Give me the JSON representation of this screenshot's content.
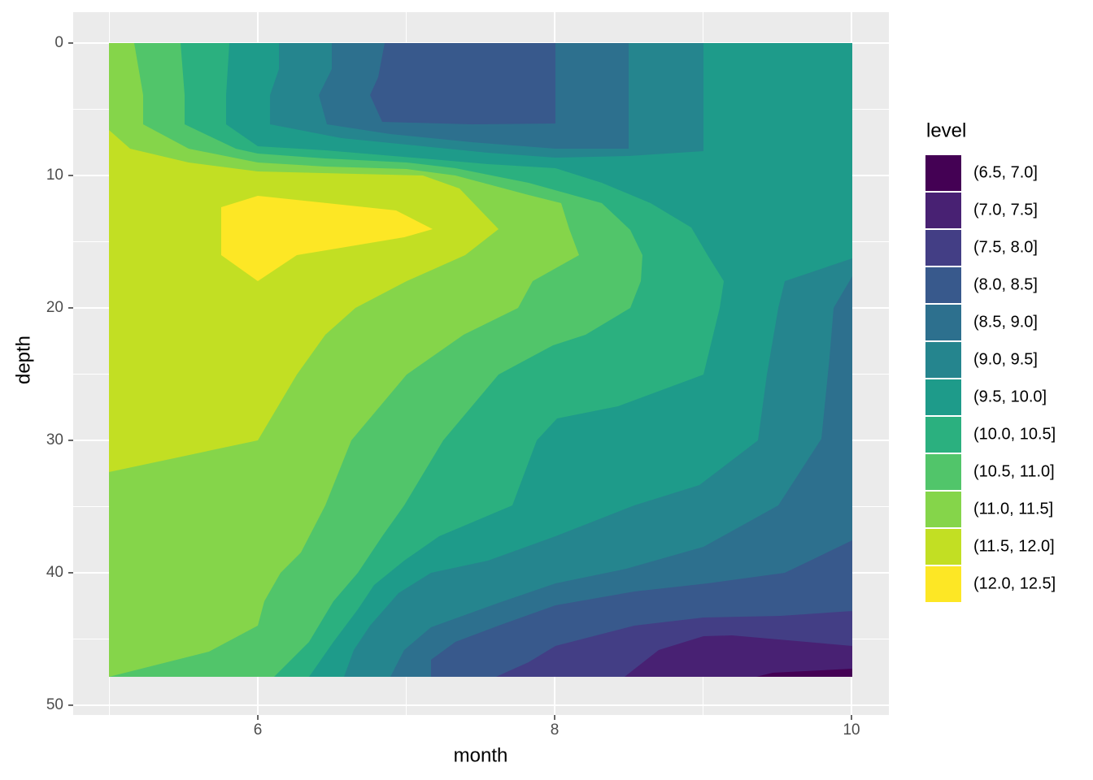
{
  "chart_data": {
    "type": "contour",
    "x_label": "month",
    "y_label": "depth",
    "legend_title": "level",
    "legend_position": "right",
    "grid": true,
    "y_reversed": true,
    "xlim": [
      4.756,
      10.252
    ],
    "xticks": [
      6,
      8,
      10
    ],
    "ylim": [
      -2.33,
      50.74
    ],
    "yticks": [
      0,
      10,
      20,
      30,
      40,
      50
    ],
    "levels": [
      {
        "name": "(6.5, 7.0]",
        "color": "#440154"
      },
      {
        "name": "(7.0, 7.5]",
        "color": "#482173"
      },
      {
        "name": "(7.5, 8.0]",
        "color": "#433E85"
      },
      {
        "name": "(8.0, 8.5]",
        "color": "#38598C"
      },
      {
        "name": "(8.5, 9.0]",
        "color": "#2D708E"
      },
      {
        "name": "(9.0, 9.5]",
        "color": "#25858E"
      },
      {
        "name": "(9.5, 10.0]",
        "color": "#1E9B8A"
      },
      {
        "name": "(10.0, 10.5]",
        "color": "#2BB07F"
      },
      {
        "name": "(10.5, 11.0]",
        "color": "#51C56A"
      },
      {
        "name": "(11.0, 11.5]",
        "color": "#85D54A"
      },
      {
        "name": "(11.5, 12.0]",
        "color": "#C2DF23"
      },
      {
        "name": "(12.0, 12.5]",
        "color": "#FDE725"
      }
    ]
  }
}
